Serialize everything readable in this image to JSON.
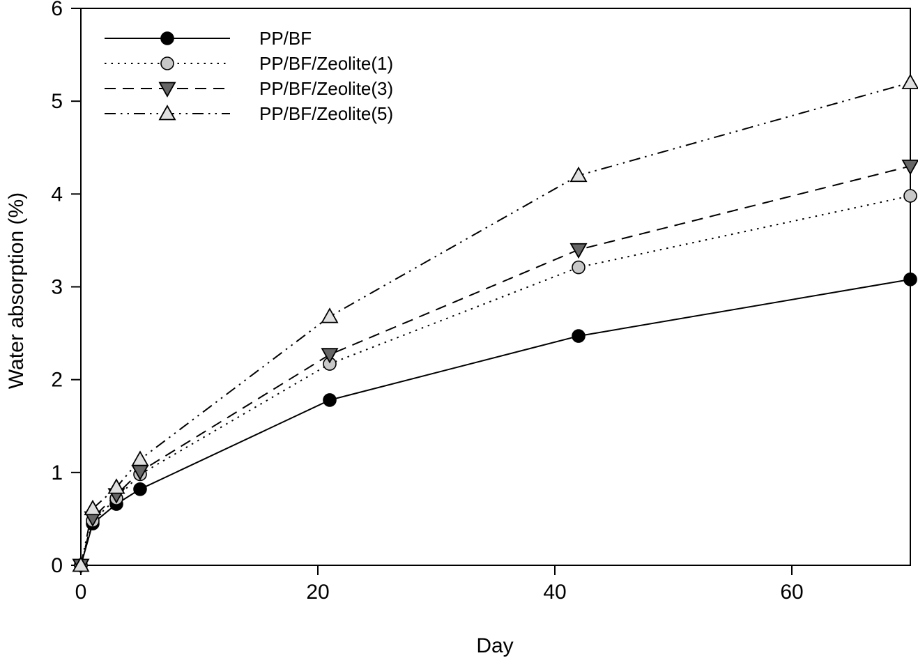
{
  "figure": {
    "background": "#ffffff",
    "ink_color": "#000000"
  },
  "chart_data": {
    "type": "line",
    "title": "",
    "xlabel": "Day",
    "ylabel": "Water absorption (%)",
    "xlim": [
      0,
      70
    ],
    "ylim": [
      0,
      6
    ],
    "x_ticks": [
      0,
      20,
      40,
      60
    ],
    "y_ticks": [
      0,
      1,
      2,
      3,
      4,
      5,
      6
    ],
    "grid": false,
    "legend_position": "upper-left-inside",
    "x": [
      0,
      1,
      3,
      5,
      21,
      42,
      70
    ],
    "series": [
      {
        "name": "PP/BF",
        "values": [
          0,
          0.45,
          0.66,
          0.82,
          1.78,
          2.47,
          3.08
        ],
        "line_style": "solid",
        "line_color": "#000000",
        "marker": "circle",
        "marker_fill": "#000000",
        "marker_edge": "#000000"
      },
      {
        "name": "PP/BF/Zeolite(1)",
        "values": [
          0,
          0.48,
          0.72,
          0.98,
          2.17,
          3.21,
          3.98
        ],
        "line_style": "dotted",
        "line_color": "#000000",
        "marker": "circle",
        "marker_fill": "#c8c8c8",
        "marker_edge": "#000000"
      },
      {
        "name": "PP/BF/Zeolite(3)",
        "values": [
          0,
          0.51,
          0.76,
          1.01,
          2.27,
          3.4,
          4.3
        ],
        "line_style": "dashed",
        "line_color": "#000000",
        "marker": "triangle-down",
        "marker_fill": "#666666",
        "marker_edge": "#000000"
      },
      {
        "name": "PP/BF/Zeolite(5)",
        "values": [
          0,
          0.61,
          0.84,
          1.14,
          2.68,
          4.2,
          5.2
        ],
        "line_style": "dash-dot-dot",
        "line_color": "#000000",
        "marker": "triangle-up",
        "marker_fill": "#e0e0e0",
        "marker_edge": "#000000"
      }
    ]
  }
}
